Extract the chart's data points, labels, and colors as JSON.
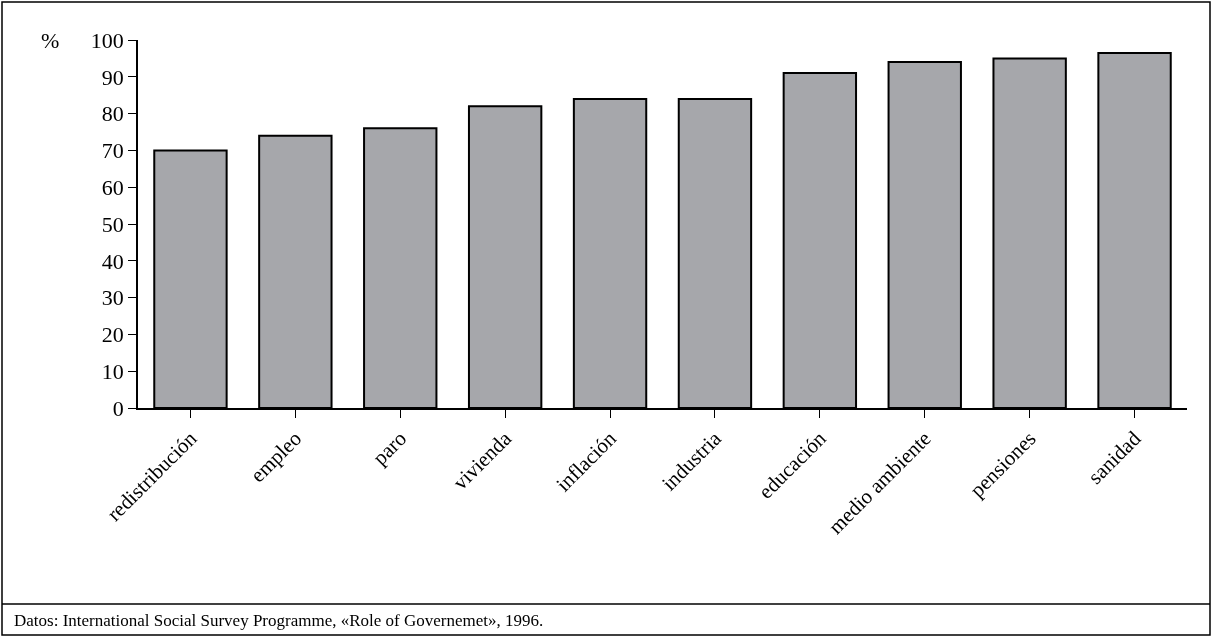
{
  "chart_data": {
    "type": "bar",
    "ylabel": "%",
    "categories": [
      "redistribución",
      "empleo",
      "paro",
      "vivienda",
      "inflación",
      "industria",
      "educación",
      "medio ambiente",
      "pensiones",
      "sanidad"
    ],
    "values": [
      70,
      74,
      76,
      82,
      84,
      84,
      91,
      94,
      95,
      96.5
    ],
    "color": "#a6a7ab",
    "ylim": [
      0,
      100
    ],
    "yticks": [
      0,
      10,
      20,
      30,
      40,
      50,
      60,
      70,
      80,
      90,
      100
    ],
    "annotations": [
      "Datos: International Social Survey Programme, «Role of Governemet», 1996."
    ]
  }
}
